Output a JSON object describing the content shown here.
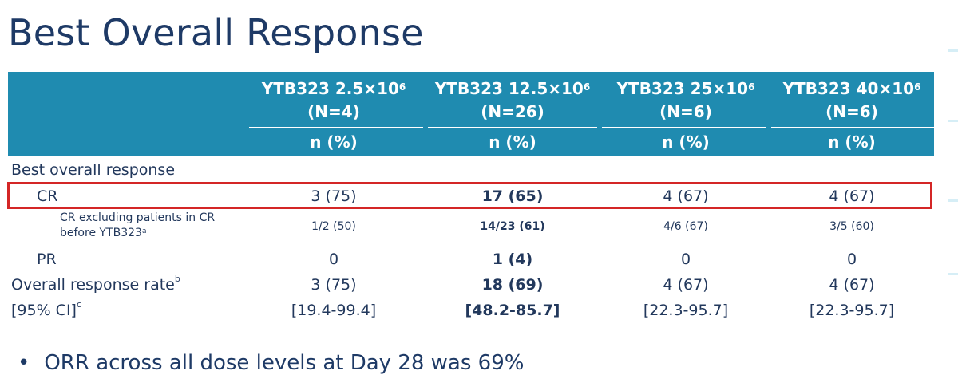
{
  "title": "Best Overall Response",
  "table": {
    "columns": [
      {
        "name": "YTB323 2.5×10",
        "exp": "6",
        "n": "(N=4)"
      },
      {
        "name": "YTB323 12.5×10",
        "exp": "6",
        "n": "(N=26)"
      },
      {
        "name": "YTB323 25×10",
        "exp": "6",
        "n": "(N=6)"
      },
      {
        "name": "YTB323 40×10",
        "exp": "6",
        "n": "(N=6)"
      }
    ],
    "subheader": "n (%)",
    "section_label": "Best overall response",
    "rows": {
      "cr": {
        "label": "CR",
        "values": [
          "3 (75)",
          "17 (65)",
          "4 (67)",
          "4 (67)"
        ]
      },
      "cr_excl": {
        "label_line1": "CR excluding patients in CR",
        "label_line2": "before YTB323",
        "label_sup": "a",
        "values": [
          "1/2 (50)",
          "14/23 (61)",
          "4/6 (67)",
          "3/5 (60)"
        ]
      },
      "pr": {
        "label": "PR",
        "values": [
          "0",
          "1 (4)",
          "0",
          "0"
        ]
      },
      "orr": {
        "label": "Overall response rate",
        "label_sup": "b",
        "values": [
          "3 (75)",
          "18 (69)",
          "4 (67)",
          "4 (67)"
        ]
      },
      "ci": {
        "label": "[95% CI]",
        "label_sup": "c",
        "values": [
          "[19.4-99.4]",
          "[48.2-85.7]",
          "[22.3-95.7]",
          "[22.3-95.7]"
        ]
      }
    }
  },
  "bullet": "ORR across all dose levels at Day 28 was 69%",
  "colors": {
    "header": "#1f8bb0",
    "highlight": "#d42626",
    "text": "#22385c"
  }
}
